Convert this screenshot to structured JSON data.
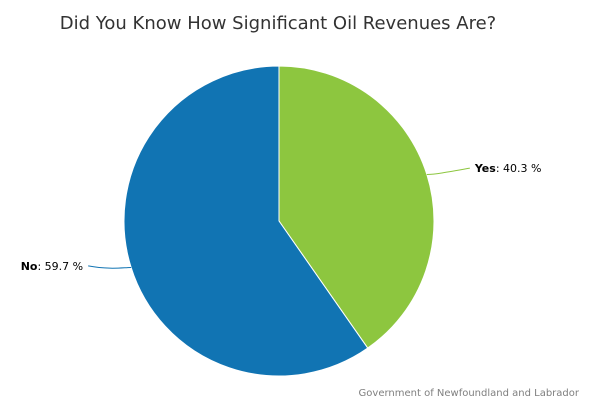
{
  "chart_data": {
    "type": "pie",
    "title": "Did You Know How Significant Oil Revenues Are?",
    "slices": [
      {
        "name": "Yes",
        "value": 40.3,
        "color": "#8dc63f"
      },
      {
        "name": "No",
        "value": 59.7,
        "color": "#1174b3"
      }
    ],
    "value_suffix": " %",
    "credit": "Government of Newfoundland and Labrador"
  }
}
